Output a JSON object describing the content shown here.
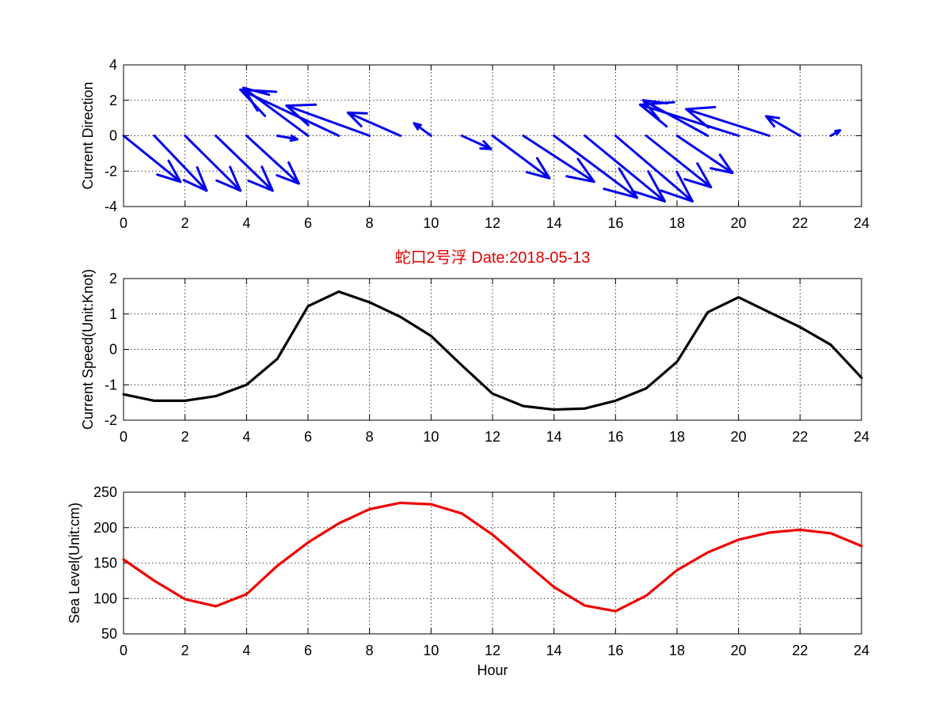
{
  "chart_data": [
    {
      "type": "quiver",
      "ylabel": "Current Direction",
      "xlim": [
        0,
        24
      ],
      "ylim": [
        -4,
        4
      ],
      "xticks": [
        0,
        2,
        4,
        6,
        8,
        10,
        12,
        14,
        16,
        18,
        20,
        22,
        24
      ],
      "yticks": [
        -4,
        -2,
        0,
        2,
        4
      ],
      "color": "#0000ee",
      "x": [
        0,
        1,
        2,
        3,
        4,
        5,
        6,
        7,
        8,
        9,
        10,
        11,
        12,
        13,
        14,
        15,
        16,
        17,
        18,
        19,
        20,
        21,
        22,
        23
      ],
      "u": [
        1.85,
        1.7,
        1.8,
        1.85,
        1.7,
        0.65,
        -2.1,
        -3.2,
        -2.7,
        -1.7,
        -0.55,
        0.95,
        1.85,
        2.3,
        2.7,
        2.6,
        2.5,
        2.1,
        1.8,
        -2.1,
        -3.2,
        -2.7,
        -1.1,
        0.3
      ],
      "v": [
        -2.6,
        -3.1,
        -3.1,
        -3.1,
        -2.7,
        -0.2,
        2.7,
        2.6,
        1.7,
        1.3,
        0.7,
        -0.75,
        -2.4,
        -2.6,
        -3.5,
        -3.7,
        -3.7,
        -2.9,
        -2.1,
        2.0,
        1.75,
        1.5,
        1.1,
        0.3
      ]
    },
    {
      "type": "line",
      "title": "蛇口2号浮   Date:2018-05-13",
      "ylabel": "Current Speed(Unit:Knot)",
      "xlim": [
        0,
        24
      ],
      "ylim": [
        -2,
        2
      ],
      "xticks": [
        0,
        2,
        4,
        6,
        8,
        10,
        12,
        14,
        16,
        18,
        20,
        22,
        24
      ],
      "yticks": [
        -2,
        -1,
        0,
        1,
        2
      ],
      "color": "#000000",
      "x": [
        0,
        1,
        2,
        3,
        4,
        5,
        6,
        7,
        8,
        9,
        10,
        11,
        12,
        13,
        14,
        15,
        16,
        17,
        18,
        19,
        20,
        21,
        22,
        23,
        24
      ],
      "y": [
        -1.27,
        -1.45,
        -1.45,
        -1.32,
        -1.0,
        -0.27,
        1.22,
        1.63,
        1.33,
        0.92,
        0.38,
        -0.45,
        -1.25,
        -1.6,
        -1.7,
        -1.67,
        -1.45,
        -1.1,
        -0.35,
        1.05,
        1.47,
        1.05,
        0.63,
        0.13,
        -0.8
      ]
    },
    {
      "type": "line",
      "xlabel": "Hour",
      "ylabel": "Sea Level(Unit:cm)",
      "xlim": [
        0,
        24
      ],
      "ylim": [
        50,
        250
      ],
      "xticks": [
        0,
        2,
        4,
        6,
        8,
        10,
        12,
        14,
        16,
        18,
        20,
        22,
        24
      ],
      "yticks": [
        50,
        100,
        150,
        200,
        250
      ],
      "color": "#ee0000",
      "x": [
        0,
        1,
        2,
        3,
        4,
        5,
        6,
        7,
        8,
        9,
        10,
        11,
        12,
        13,
        14,
        15,
        16,
        17,
        18,
        19,
        20,
        21,
        22,
        23,
        24
      ],
      "y": [
        155,
        125,
        99,
        89,
        106,
        146,
        179,
        206,
        226,
        235,
        233,
        220,
        190,
        153,
        116,
        90,
        82,
        104,
        140,
        165,
        183,
        193,
        197,
        192,
        174
      ]
    }
  ]
}
